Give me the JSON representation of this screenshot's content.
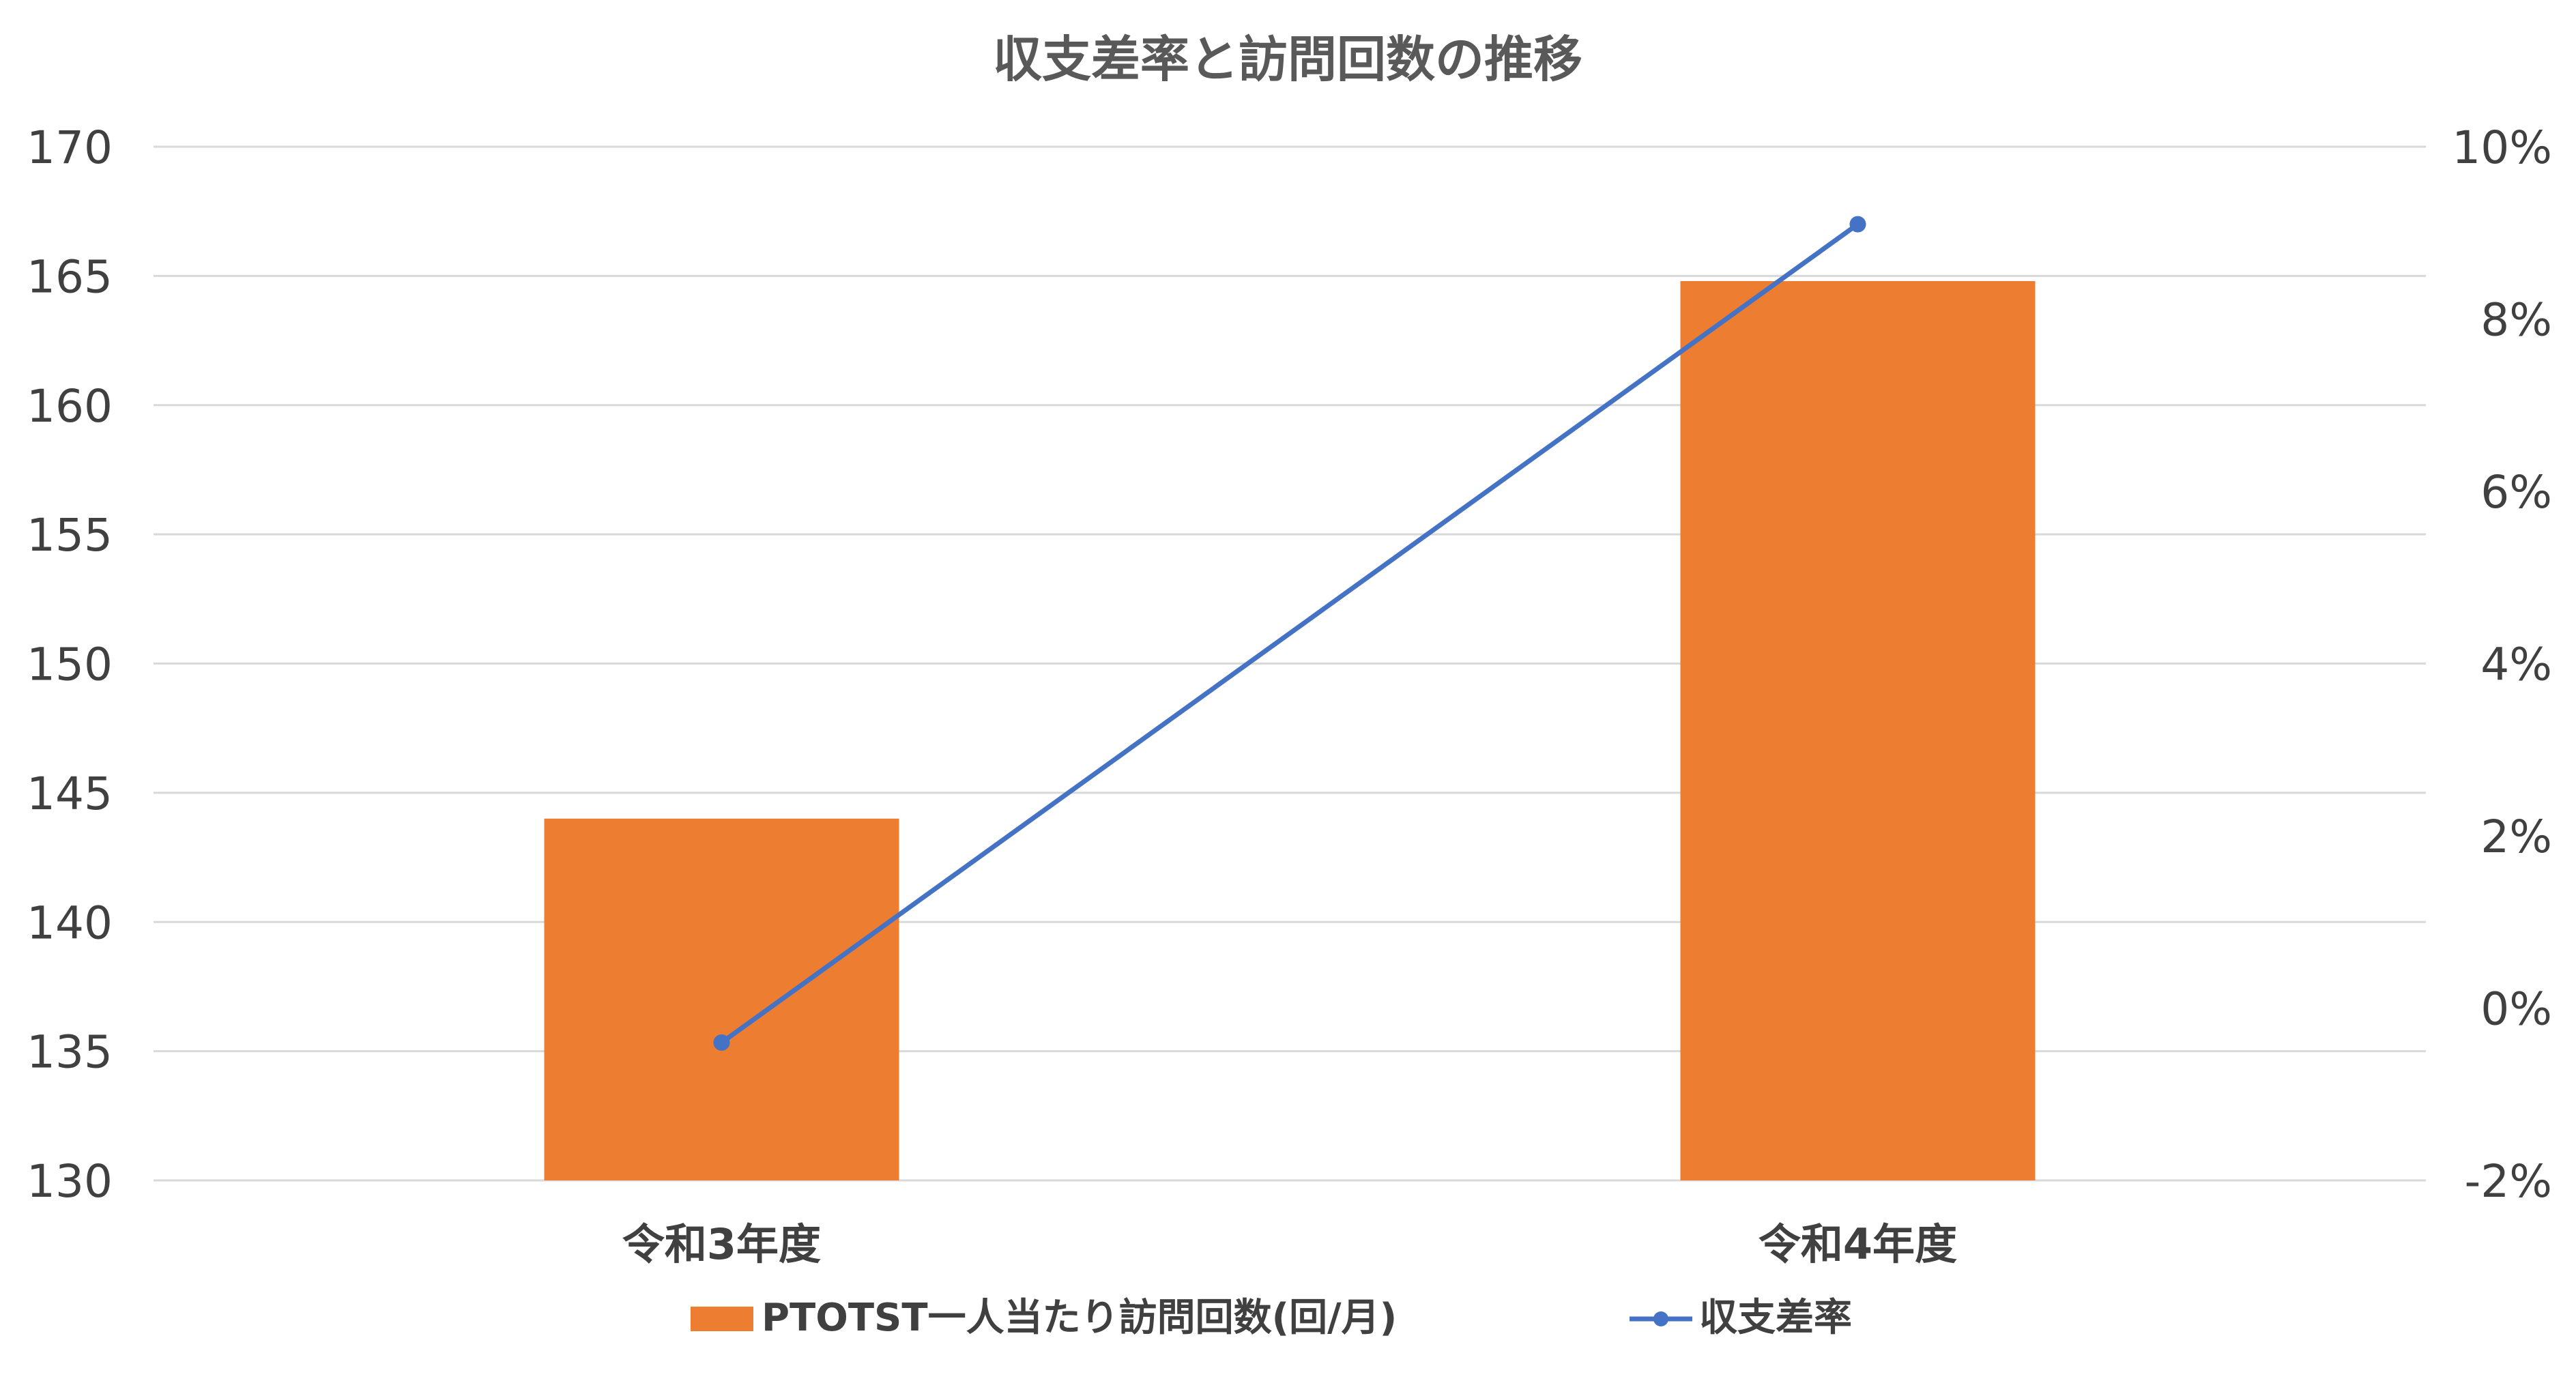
{
  "chart_data": {
    "type": "bar+line",
    "title": "収支差率と訪問回数の推移",
    "categories": [
      "令和3年度",
      "令和4年度"
    ],
    "y_left": {
      "ticks": [
        "130",
        "135",
        "140",
        "145",
        "150",
        "155",
        "160",
        "165",
        "170"
      ],
      "lim": [
        130,
        170
      ]
    },
    "y_right": {
      "ticks": [
        "-2%",
        "0%",
        "2%",
        "4%",
        "6%",
        "8%",
        "10%"
      ],
      "lim": [
        -0.02,
        0.1
      ]
    },
    "series": [
      {
        "name": "PTOTST一人当たり訪問回数(回/月)",
        "type": "bar",
        "axis": "left",
        "values": [
          144.0,
          164.8
        ],
        "color": "#ED7D31"
      },
      {
        "name": "収支差率",
        "type": "line",
        "axis": "right",
        "values": [
          -0.004,
          0.091
        ],
        "color": "#4472C4"
      }
    ],
    "grid": true,
    "legend": "bottom"
  }
}
